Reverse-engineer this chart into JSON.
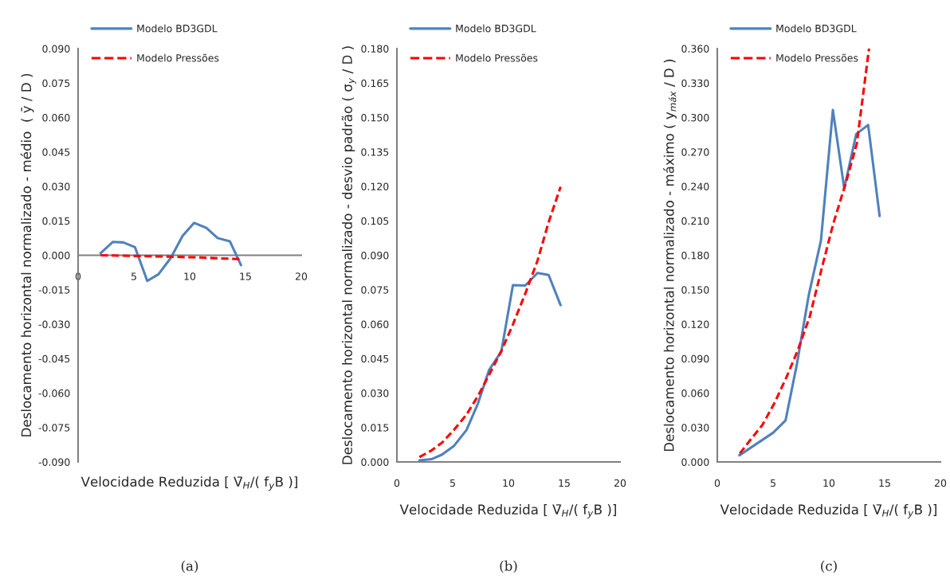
{
  "chart_data": [
    {
      "type": "line",
      "xlabel": "Velocidade Reduzida [ V̄$_{H}$/( f$_{y}$B )]",
      "ylabel": "Deslocamento horizontal normalizado - médio  ( ȳ / D )",
      "annotations": [
        "(a)"
      ],
      "legend": "top left",
      "grid": false,
      "marker": "none",
      "x": [
        2.02,
        3.1,
        4.05,
        5.1,
        6.2,
        7.2,
        8.3,
        9.36,
        10.4,
        11.5,
        12.5,
        13.6,
        14.6
      ],
      "xlim": [
        0,
        20
      ],
      "xticks": [
        0,
        5,
        10,
        15,
        20
      ],
      "ylim": [
        -0.09,
        0.09
      ],
      "yticks": [
        {
          "value": -0.09,
          "label": "-0.090"
        },
        {
          "value": -0.075,
          "label": "-0.075"
        },
        {
          "value": -0.06,
          "label": "-0.060"
        },
        {
          "value": -0.045,
          "label": "-0.045"
        },
        {
          "value": -0.03,
          "label": "-0.030"
        },
        {
          "value": -0.015,
          "label": "-0.015"
        },
        {
          "value": 0,
          "label": "0.000"
        },
        {
          "value": 0.015,
          "label": "0.015"
        },
        {
          "value": 0.03,
          "label": "0.030"
        },
        {
          "value": 0.045,
          "label": "0.045"
        },
        {
          "value": 0.06,
          "label": "0.060"
        },
        {
          "value": 0.075,
          "label": "0.075"
        },
        {
          "value": 0.09,
          "label": "0.090"
        }
      ],
      "series": [
        {
          "name": "Modelo BD3GDL",
          "color": "#4f81bd",
          "line_style": "solid",
          "values": [
            0.0009,
            0.0058,
            0.0056,
            0.0035,
            -0.0112,
            -0.0083,
            -0.0012,
            0.0084,
            0.0141,
            0.0119,
            0.0075,
            0.0061,
            -0.0043
          ]
        },
        {
          "name": "Modelo Pressões",
          "color": "#ff0000",
          "line_style": "dashed",
          "values": [
            0.0,
            -0.0001,
            -0.0002,
            -0.0003,
            -0.0004,
            -0.0005,
            -0.0006,
            -0.0008,
            -0.0009,
            -0.0011,
            -0.0013,
            -0.0015,
            -0.0017
          ]
        }
      ]
    },
    {
      "type": "line",
      "xlabel": "Velocidade Reduzida [ V̄$_{H}$/( f$_{y}$B )]",
      "ylabel": "Deslocamento horizontal normalizado - desvio padrão ( σ$_{y}$ / D )",
      "annotations": [
        "(b)"
      ],
      "legend": "top left",
      "grid": false,
      "marker": "none",
      "x": [
        2.02,
        3.1,
        4.05,
        5.1,
        6.24,
        7.26,
        8.26,
        9.36,
        10.4,
        11.5,
        12.6,
        13.6,
        14.67
      ],
      "xlim": [
        0,
        20
      ],
      "xticks": [
        0,
        5,
        10,
        15,
        20
      ],
      "ylim": [
        0,
        0.18
      ],
      "yticks": [
        {
          "value": 0,
          "label": "0.000"
        },
        {
          "value": 0.015,
          "label": "0.015"
        },
        {
          "value": 0.03,
          "label": "0.030"
        },
        {
          "value": 0.045,
          "label": "0.045"
        },
        {
          "value": 0.06,
          "label": "0.060"
        },
        {
          "value": 0.075,
          "label": "0.075"
        },
        {
          "value": 0.09,
          "label": "0.090"
        },
        {
          "value": 0.105,
          "label": "0.105"
        },
        {
          "value": 0.12,
          "label": "0.120"
        },
        {
          "value": 0.135,
          "label": "0.135"
        },
        {
          "value": 0.15,
          "label": "0.150"
        },
        {
          "value": 0.165,
          "label": "0.165"
        },
        {
          "value": 0.18,
          "label": "0.180"
        }
      ],
      "series": [
        {
          "name": "Modelo BD3GDL",
          "color": "#4f81bd",
          "line_style": "solid",
          "values": [
            0.0007,
            0.0012,
            0.0032,
            0.0069,
            0.0139,
            0.0254,
            0.04,
            0.0481,
            0.077,
            0.0768,
            0.0823,
            0.0814,
            0.0683
          ]
        },
        {
          "name": "Modelo Pressões",
          "color": "#ff0000",
          "line_style": "dashed",
          "values": [
            0.0021,
            0.005,
            0.0084,
            0.0139,
            0.0206,
            0.0287,
            0.0379,
            0.0483,
            0.0599,
            0.0732,
            0.0876,
            0.1044,
            0.1198
          ]
        }
      ]
    },
    {
      "type": "line",
      "xlabel": "Velocidade Reduzida [ V̄$_{H}$/( f$_{y}$B )]",
      "ylabel": "Deslocamento horizontal normalizado - máximo ( y$_{máx}$ / D )",
      "annotations": [
        "(c)"
      ],
      "legend": "top left",
      "grid": false,
      "marker": "none",
      "xlim": [
        0,
        20
      ],
      "xticks": [
        0,
        5,
        10,
        15,
        20
      ],
      "ylim": [
        0,
        0.36
      ],
      "yticks": [
        {
          "value": 0,
          "label": "0.000"
        },
        {
          "value": 0.03,
          "label": "0.030"
        },
        {
          "value": 0.06,
          "label": "0.060"
        },
        {
          "value": 0.09,
          "label": "0.090"
        },
        {
          "value": 0.12,
          "label": "0.120"
        },
        {
          "value": 0.15,
          "label": "0.150"
        },
        {
          "value": 0.18,
          "label": "0.180"
        },
        {
          "value": 0.21,
          "label": "0.210"
        },
        {
          "value": 0.24,
          "label": "0.240"
        },
        {
          "value": 0.27,
          "label": "0.270"
        },
        {
          "value": 0.3,
          "label": "0.300"
        },
        {
          "value": 0.33,
          "label": "0.330"
        },
        {
          "value": 0.36,
          "label": "0.360"
        }
      ],
      "series": [
        {
          "name": "Modelo BD3GDL",
          "color": "#4f81bd",
          "line_style": "solid",
          "x": [
            1.98,
            5.0,
            6.12,
            7.14,
            8.2,
            9.29,
            10.36,
            11.38,
            12.45,
            13.52,
            14.55
          ],
          "values": [
            0.0058,
            0.0254,
            0.0362,
            0.0854,
            0.1454,
            0.1927,
            0.3065,
            0.2382,
            0.2855,
            0.2935,
            0.2142
          ]
        },
        {
          "name": "Modelo Pressões",
          "color": "#ff0000",
          "line_style": "dashed",
          "x": [
            2.02,
            3.1,
            4.05,
            5.1,
            6.2,
            7.2,
            8.3,
            9.36,
            10.4,
            11.5,
            12.5,
            13.6
          ],
          "values": [
            0.0074,
            0.0208,
            0.0323,
            0.0508,
            0.0738,
            0.0969,
            0.127,
            0.1685,
            0.2077,
            0.2423,
            0.277,
            0.36
          ]
        }
      ]
    }
  ]
}
